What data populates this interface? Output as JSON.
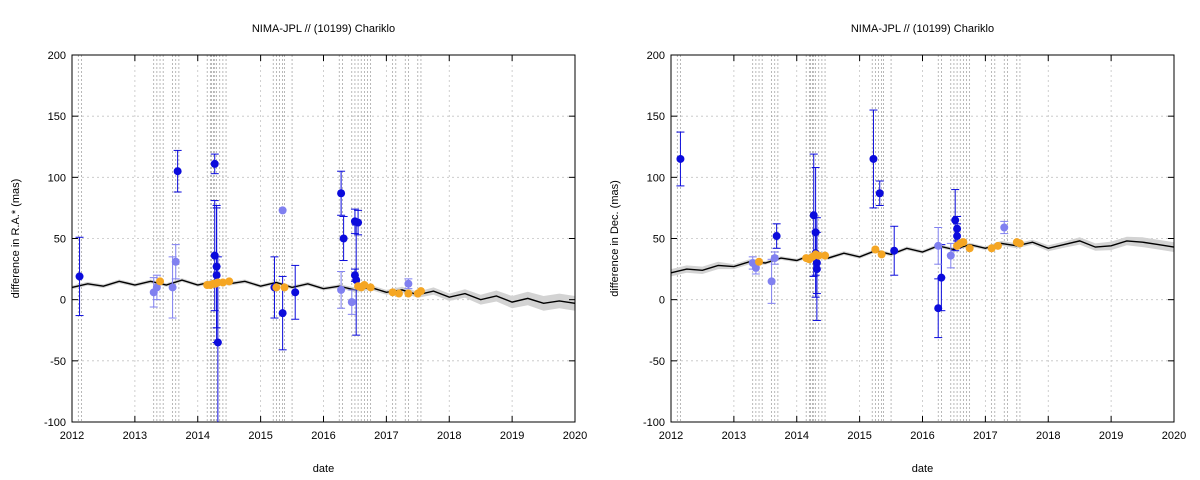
{
  "chart_data": [
    {
      "type": "scatter",
      "title": "NIMA-JPL // (10199) Chariklo",
      "xlabel": "date",
      "ylabel": "difference in R.A.* (mas)",
      "xlim": [
        2012,
        2020
      ],
      "ylim": [
        -100,
        200
      ],
      "xticks": [
        "2012",
        "2013",
        "2014",
        "2015",
        "2016",
        "2017",
        "2018",
        "2019",
        "2020"
      ],
      "yticks": [
        "-100",
        "-50",
        "0",
        "50",
        "100",
        "150",
        "200"
      ],
      "grid": true,
      "colors": {
        "dark_blue": "#0b0bdc",
        "light_blue": "#8080f0",
        "orange": "#f5a623",
        "model": "#000000",
        "band": "#d3d3d3"
      },
      "vlines": [
        2012.1,
        2012.15,
        2013.3,
        2013.35,
        2013.4,
        2013.45,
        2013.6,
        2013.65,
        2013.7,
        2014.15,
        2014.2,
        2014.22,
        2014.25,
        2014.27,
        2014.3,
        2014.35,
        2014.4,
        2014.45,
        2015.2,
        2015.25,
        2015.3,
        2015.35,
        2015.38,
        2015.5,
        2016.25,
        2016.3,
        2016.45,
        2016.5,
        2016.55,
        2016.6,
        2016.65,
        2016.7,
        2016.75,
        2017.1,
        2017.15,
        2017.3,
        2017.35,
        2017.5,
        2017.55
      ],
      "model": {
        "x": [
          2012.0,
          2012.25,
          2012.5,
          2012.75,
          2013.0,
          2013.25,
          2013.5,
          2013.75,
          2014.0,
          2014.25,
          2014.5,
          2014.75,
          2015.0,
          2015.25,
          2015.5,
          2015.75,
          2016.0,
          2016.25,
          2016.5,
          2016.75,
          2017.0,
          2017.25,
          2017.5,
          2017.75,
          2018.0,
          2018.25,
          2018.5,
          2018.75,
          2019.0,
          2019.25,
          2019.5,
          2019.75,
          2020.0
        ],
        "y": [
          10,
          13,
          11,
          15,
          12,
          15,
          12,
          16,
          12,
          15,
          13,
          15,
          11,
          14,
          10,
          13,
          9,
          11,
          8,
          10,
          6,
          8,
          4,
          7,
          2,
          5,
          0,
          3,
          -2,
          1,
          -3,
          -1,
          -3
        ],
        "band": [
          1.5,
          1.5,
          1.5,
          1.5,
          1.5,
          1.5,
          1.5,
          1.5,
          1.5,
          1.5,
          1.5,
          1.5,
          1.5,
          1.5,
          1.5,
          1.5,
          1.5,
          1.5,
          2,
          2,
          2,
          2.5,
          2.5,
          3,
          3,
          3.5,
          4,
          4.5,
          5,
          5.5,
          6,
          6,
          6
        ]
      },
      "series": [
        {
          "points": [
            {
              "x": 2012.12,
              "y": 19,
              "err": 32
            },
            {
              "x": 2013.68,
              "y": 105,
              "err": 17
            },
            {
              "x": 2014.27,
              "y": 111,
              "err": 8
            },
            {
              "x": 2014.27,
              "y": 36,
              "err": 45
            },
            {
              "x": 2014.3,
              "y": 27,
              "err": 50
            },
            {
              "x": 2014.3,
              "y": 20,
              "err": 55
            },
            {
              "x": 2014.32,
              "y": -35,
              "err": 70
            },
            {
              "x": 2015.22,
              "y": 10,
              "err": 25
            },
            {
              "x": 2015.35,
              "y": -11,
              "err": 30
            },
            {
              "x": 2015.55,
              "y": 6,
              "err": 22
            },
            {
              "x": 2016.28,
              "y": 87,
              "err": 18
            },
            {
              "x": 2016.32,
              "y": 50,
              "err": 18
            },
            {
              "x": 2016.5,
              "y": 64,
              "err": 10
            },
            {
              "x": 2016.5,
              "y": 20,
              "err": 5
            },
            {
              "x": 2016.52,
              "y": 16,
              "err": 45
            },
            {
              "x": 2016.55,
              "y": 63,
              "err": 10
            }
          ]
        },
        {
          "points": [
            {
              "x": 2013.3,
              "y": 6,
              "err": 12
            },
            {
              "x": 2013.35,
              "y": 10,
              "err": 10
            },
            {
              "x": 2013.6,
              "y": 10,
              "err": 25
            },
            {
              "x": 2013.65,
              "y": 31,
              "err": 14
            },
            {
              "x": 2015.35,
              "y": 73,
              "err": 0
            },
            {
              "x": 2016.28,
              "y": 8,
              "err": 15
            },
            {
              "x": 2016.45,
              "y": -2,
              "err": 10
            },
            {
              "x": 2017.35,
              "y": 13,
              "err": 4
            }
          ]
        },
        {
          "points": [
            {
              "x": 2013.4,
              "y": 15
            },
            {
              "x": 2014.15,
              "y": 12
            },
            {
              "x": 2014.2,
              "y": 12
            },
            {
              "x": 2014.25,
              "y": 13
            },
            {
              "x": 2014.28,
              "y": 13
            },
            {
              "x": 2014.32,
              "y": 14
            },
            {
              "x": 2014.4,
              "y": 14
            },
            {
              "x": 2014.5,
              "y": 15
            },
            {
              "x": 2015.25,
              "y": 10
            },
            {
              "x": 2015.38,
              "y": 10
            },
            {
              "x": 2016.55,
              "y": 11
            },
            {
              "x": 2016.6,
              "y": 10
            },
            {
              "x": 2016.65,
              "y": 12
            },
            {
              "x": 2016.75,
              "y": 10
            },
            {
              "x": 2017.1,
              "y": 6
            },
            {
              "x": 2017.2,
              "y": 5
            },
            {
              "x": 2017.35,
              "y": 5
            },
            {
              "x": 2017.5,
              "y": 5
            },
            {
              "x": 2017.55,
              "y": 7
            }
          ]
        }
      ]
    },
    {
      "type": "scatter",
      "title": "NIMA-JPL // (10199) Chariklo",
      "xlabel": "date",
      "ylabel": "difference in Dec. (mas)",
      "xlim": [
        2012,
        2020
      ],
      "ylim": [
        -100,
        200
      ],
      "xticks": [
        "2012",
        "2013",
        "2014",
        "2015",
        "2016",
        "2017",
        "2018",
        "2019",
        "2020"
      ],
      "yticks": [
        "-100",
        "-50",
        "0",
        "50",
        "100",
        "150",
        "200"
      ],
      "grid": true,
      "colors": {
        "dark_blue": "#0b0bdc",
        "light_blue": "#8080f0",
        "orange": "#f5a623",
        "model": "#000000",
        "band": "#d3d3d3"
      },
      "vlines": [
        2012.1,
        2012.15,
        2013.3,
        2013.35,
        2013.4,
        2013.45,
        2013.6,
        2013.65,
        2013.7,
        2014.15,
        2014.2,
        2014.22,
        2014.25,
        2014.27,
        2014.3,
        2014.35,
        2014.4,
        2014.45,
        2015.2,
        2015.25,
        2015.3,
        2015.35,
        2015.38,
        2015.5,
        2016.25,
        2016.3,
        2016.45,
        2016.5,
        2016.55,
        2016.6,
        2016.65,
        2016.7,
        2016.75,
        2017.1,
        2017.15,
        2017.3,
        2017.35,
        2017.5,
        2017.55
      ],
      "model": {
        "x": [
          2012.0,
          2012.25,
          2012.5,
          2012.75,
          2013.0,
          2013.25,
          2013.5,
          2013.75,
          2014.0,
          2014.25,
          2014.5,
          2014.75,
          2015.0,
          2015.25,
          2015.5,
          2015.75,
          2016.0,
          2016.25,
          2016.5,
          2016.75,
          2017.0,
          2017.25,
          2017.5,
          2017.75,
          2018.0,
          2018.25,
          2018.5,
          2018.75,
          2019.0,
          2019.25,
          2019.5,
          2019.75,
          2020.0
        ],
        "y": [
          22,
          25,
          24,
          28,
          27,
          31,
          30,
          34,
          32,
          37,
          34,
          38,
          35,
          40,
          37,
          42,
          39,
          44,
          41,
          45,
          42,
          46,
          44,
          47,
          42,
          45,
          48,
          43,
          44,
          48,
          47,
          45,
          43
        ],
        "band": [
          3,
          3,
          3,
          3,
          2,
          2,
          1.5,
          1.5,
          1.5,
          1.5,
          1.5,
          1.5,
          1.5,
          1.5,
          1.5,
          1.5,
          1.5,
          1.5,
          1.5,
          1.5,
          1.5,
          2,
          2,
          2,
          2.5,
          2.5,
          3,
          3,
          3.5,
          3.5,
          4,
          4,
          4
        ]
      },
      "series": [
        {
          "points": [
            {
              "x": 2012.15,
              "y": 115,
              "err": 22
            },
            {
              "x": 2013.68,
              "y": 52,
              "err": 10
            },
            {
              "x": 2014.27,
              "y": 69,
              "err": 50
            },
            {
              "x": 2014.3,
              "y": 55,
              "err": 53
            },
            {
              "x": 2014.3,
              "y": 38,
              "err": 18
            },
            {
              "x": 2014.32,
              "y": 30,
              "err": 25
            },
            {
              "x": 2014.32,
              "y": 25,
              "err": 42
            },
            {
              "x": 2015.22,
              "y": 115,
              "err": 40
            },
            {
              "x": 2015.32,
              "y": 87,
              "err": 10
            },
            {
              "x": 2015.55,
              "y": 40,
              "err": 20
            },
            {
              "x": 2016.25,
              "y": -7,
              "err": 24
            },
            {
              "x": 2016.3,
              "y": 18,
              "err": 27
            },
            {
              "x": 2016.52,
              "y": 65,
              "err": 25
            },
            {
              "x": 2016.55,
              "y": 58,
              "err": 10
            },
            {
              "x": 2016.55,
              "y": 52,
              "err": 10
            }
          ]
        },
        {
          "points": [
            {
              "x": 2013.3,
              "y": 30,
              "err": 5
            },
            {
              "x": 2013.35,
              "y": 26,
              "err": 5
            },
            {
              "x": 2013.6,
              "y": 15,
              "err": 18
            },
            {
              "x": 2013.65,
              "y": 34,
              "err": 5
            },
            {
              "x": 2016.25,
              "y": 44,
              "err": 15
            },
            {
              "x": 2016.45,
              "y": 36,
              "err": 10
            },
            {
              "x": 2017.3,
              "y": 59,
              "err": 5
            }
          ]
        },
        {
          "points": [
            {
              "x": 2013.4,
              "y": 31
            },
            {
              "x": 2014.15,
              "y": 34
            },
            {
              "x": 2014.2,
              "y": 33
            },
            {
              "x": 2014.25,
              "y": 35
            },
            {
              "x": 2014.3,
              "y": 37
            },
            {
              "x": 2014.35,
              "y": 36
            },
            {
              "x": 2014.45,
              "y": 36
            },
            {
              "x": 2015.25,
              "y": 41
            },
            {
              "x": 2015.35,
              "y": 37
            },
            {
              "x": 2016.55,
              "y": 44
            },
            {
              "x": 2016.6,
              "y": 46
            },
            {
              "x": 2016.65,
              "y": 47
            },
            {
              "x": 2016.75,
              "y": 42
            },
            {
              "x": 2017.1,
              "y": 42
            },
            {
              "x": 2017.2,
              "y": 44
            },
            {
              "x": 2017.5,
              "y": 47
            },
            {
              "x": 2017.55,
              "y": 46
            }
          ]
        }
      ]
    }
  ]
}
